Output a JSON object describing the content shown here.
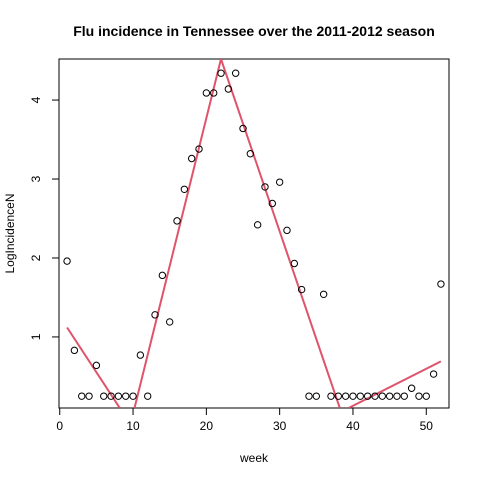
{
  "chart_data": {
    "type": "scatter",
    "title": "Flu incidence in Tennessee over the 2011-2012 season",
    "xlabel": "week",
    "ylabel": "LogIncidenceN",
    "xlim": [
      -0.1,
      53.1
    ],
    "ylim": [
      0.1,
      4.52
    ],
    "xticks": [
      0,
      10,
      20,
      30,
      40,
      50
    ],
    "yticks": [
      1,
      2,
      3,
      4
    ],
    "grid": false,
    "legend": "none",
    "point_color": "#000000",
    "line_color": "#DF536B",
    "points": {
      "x": [
        1,
        2,
        3,
        4,
        5,
        6,
        7,
        8,
        9,
        10,
        11,
        12,
        13,
        14,
        15,
        16,
        17,
        18,
        19,
        20,
        21,
        22,
        23,
        24,
        25,
        26,
        27,
        28,
        29,
        30,
        31,
        32,
        33,
        34,
        35,
        36,
        37,
        38,
        39,
        40,
        41,
        42,
        43,
        44,
        45,
        46,
        47,
        48,
        49,
        50,
        51,
        52
      ],
      "y": [
        1.96,
        0.83,
        0.25,
        0.25,
        0.64,
        0.25,
        0.25,
        0.25,
        0.25,
        0.25,
        0.77,
        0.25,
        1.28,
        1.78,
        1.19,
        2.47,
        2.87,
        3.26,
        3.38,
        4.09,
        4.09,
        4.34,
        4.14,
        4.34,
        3.64,
        3.32,
        2.42,
        2.9,
        2.69,
        2.96,
        2.35,
        1.93,
        1.6,
        0.25,
        0.25,
        1.54,
        0.25,
        0.25,
        0.25,
        0.25,
        0.25,
        0.25,
        0.25,
        0.25,
        0.25,
        0.25,
        0.25,
        0.35,
        0.25,
        0.25,
        0.53,
        1.67
      ]
    },
    "fit_segments": [
      {
        "x": [
          1,
          8.2
        ],
        "y": [
          1.12,
          0.1
        ]
      },
      {
        "x": [
          10.2,
          22,
          38.2
        ],
        "y": [
          0.1,
          4.52,
          0.1
        ]
      },
      {
        "x": [
          39.4,
          52
        ],
        "y": [
          0.1,
          0.69
        ]
      }
    ]
  }
}
